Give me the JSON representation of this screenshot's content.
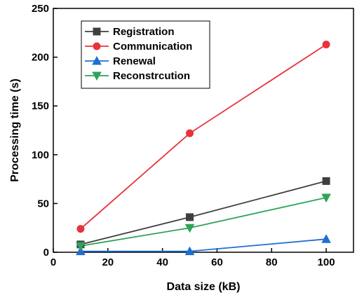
{
  "chart_data": {
    "type": "line",
    "xlabel": "Data size (kB)",
    "ylabel": "Processing time (s)",
    "xlim": [
      0,
      110
    ],
    "ylim": [
      0,
      250
    ],
    "xticks": [
      0,
      20,
      40,
      60,
      80,
      100
    ],
    "yticks": [
      0,
      50,
      100,
      150,
      200,
      250
    ],
    "x": [
      10,
      50,
      100
    ],
    "grid": false,
    "legend_position": "top-left",
    "series": [
      {
        "name": "Registration",
        "values": [
          8,
          36,
          73
        ],
        "color": "#3f3f3f",
        "marker": "square"
      },
      {
        "name": "Communication",
        "values": [
          24,
          122,
          213
        ],
        "color": "#e8333a",
        "marker": "circle"
      },
      {
        "name": "Renewal",
        "values": [
          1,
          1,
          13.5
        ],
        "color": "#1f6fd0",
        "marker": "triangle-up"
      },
      {
        "name": "Reconstrcution",
        "values": [
          6.5,
          25,
          56
        ],
        "color": "#2ea35a",
        "marker": "triangle-down"
      }
    ]
  }
}
